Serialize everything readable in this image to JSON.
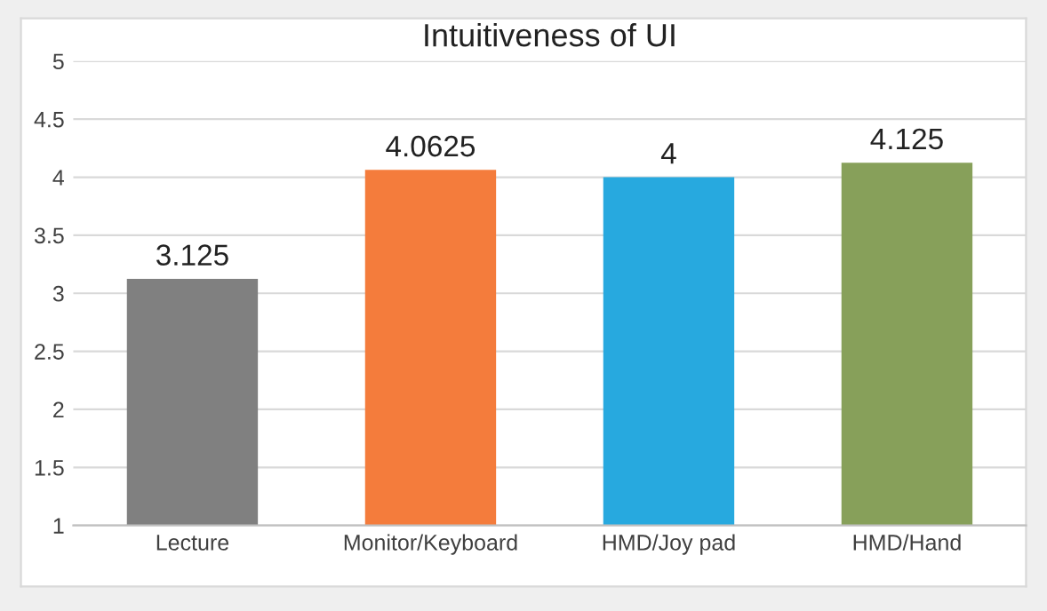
{
  "chart_data": {
    "type": "bar",
    "title": "Intuitiveness of UI",
    "categories": [
      "Lecture",
      "Monitor/Keyboard",
      "HMD/Joy pad",
      "HMD/Hand"
    ],
    "values": [
      3.125,
      4.0625,
      4,
      4.125
    ],
    "colors": [
      "#808080",
      "#f47c3c",
      "#27a9df",
      "#87a05a"
    ],
    "ylim": [
      1,
      5
    ],
    "yticks": [
      1,
      1.5,
      2,
      2.5,
      3,
      3.5,
      4,
      4.5,
      5
    ],
    "grid": "y",
    "data_labels": true
  }
}
